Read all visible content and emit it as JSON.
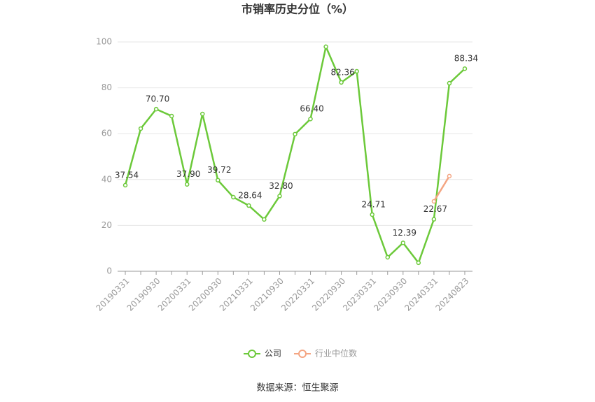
{
  "chart_data": {
    "type": "line",
    "title": "市销率历史分位（%）",
    "categories": [
      "20190331",
      null,
      "20190930",
      null,
      "20200331",
      null,
      "20200930",
      null,
      "20210331",
      null,
      "20210930",
      null,
      "20220331",
      null,
      "20220930",
      null,
      "20230331",
      null,
      "20230930",
      null,
      "20240331",
      null,
      "20240823"
    ],
    "series": [
      {
        "name": "公司",
        "color": "#6cc93a",
        "values": [
          37.54,
          62.2,
          70.7,
          67.7,
          37.9,
          68.6,
          39.72,
          32.3,
          28.64,
          22.6,
          32.8,
          59.8,
          66.4,
          97.9,
          82.36,
          87.2,
          24.71,
          6.1,
          12.39,
          3.7,
          22.67,
          82.0,
          88.34
        ],
        "value_labels": [
          "37.54",
          null,
          "70.70",
          null,
          "37.90",
          null,
          "39.72",
          null,
          "28.64",
          null,
          "32.80",
          null,
          "66.40",
          null,
          "82.36",
          null,
          "24.71",
          null,
          "12.39",
          null,
          "22.67",
          null,
          "88.34"
        ]
      },
      {
        "name": "行业中位数",
        "color": "#f4a582",
        "values": [
          null,
          null,
          null,
          null,
          null,
          null,
          null,
          null,
          null,
          null,
          null,
          null,
          null,
          null,
          null,
          null,
          null,
          null,
          null,
          null,
          30.5,
          41.5,
          null
        ]
      }
    ],
    "ylim": [
      0,
      100
    ],
    "yticks": [
      0,
      20,
      40,
      60,
      80,
      100
    ],
    "grid": true,
    "source": "数据来源：恒生聚源"
  }
}
